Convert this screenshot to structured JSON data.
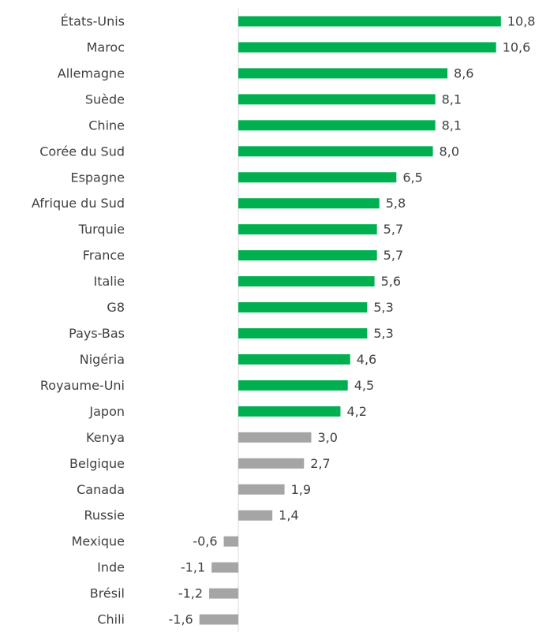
{
  "chart_data": {
    "type": "barh",
    "categories": [
      "États-Unis",
      "Maroc",
      "Allemagne",
      "Suède",
      "Chine",
      "Corée du Sud",
      "Espagne",
      "Afrique du Sud",
      "Turquie",
      "France",
      "Italie",
      "G8",
      "Pays-Bas",
      "Nigéria",
      "Royaume-Uni",
      "Japon",
      "Kenya",
      "Belgique",
      "Canada",
      "Russie",
      "Mexique",
      "Inde",
      "Brésil",
      "Chili"
    ],
    "values": [
      10.8,
      10.6,
      8.6,
      8.1,
      8.1,
      8.0,
      6.5,
      5.8,
      5.7,
      5.7,
      5.6,
      5.3,
      5.3,
      4.6,
      4.5,
      4.2,
      3.0,
      2.7,
      1.9,
      1.4,
      -0.6,
      -1.1,
      -1.2,
      -1.6
    ],
    "value_labels": [
      "10,8",
      "10,6",
      "8,6",
      "8,1",
      "8,1",
      "8,0",
      "6,5",
      "5,8",
      "5,7",
      "5,7",
      "5,6",
      "5,3",
      "5,3",
      "4,6",
      "4,5",
      "4,2",
      "3,0",
      "2,7",
      "1,9",
      "1,4",
      "-0,6",
      "-1,1",
      "-1,2",
      "-1,6"
    ],
    "colors": [
      "#00b050",
      "#00b050",
      "#00b050",
      "#00b050",
      "#00b050",
      "#00b050",
      "#00b050",
      "#00b050",
      "#00b050",
      "#00b050",
      "#00b050",
      "#00b050",
      "#00b050",
      "#00b050",
      "#00b050",
      "#00b050",
      "#a5a5a5",
      "#a5a5a5",
      "#a5a5a5",
      "#a5a5a5",
      "#a5a5a5",
      "#a5a5a5",
      "#a5a5a5",
      "#a5a5a5"
    ],
    "xlim": [
      -2,
      11
    ]
  }
}
